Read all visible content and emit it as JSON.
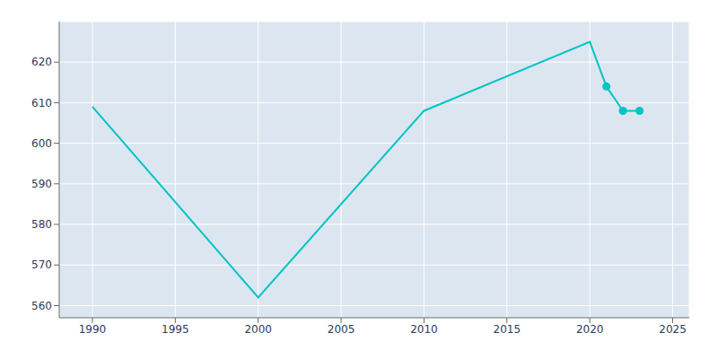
{
  "chart_data": {
    "type": "line",
    "x": [
      1990,
      2000,
      2010,
      2020,
      2021,
      2022,
      2023
    ],
    "series": [
      {
        "type": "line",
        "color": "#00c4c4",
        "values": [
          609,
          562,
          608,
          625,
          614,
          608,
          608
        ]
      },
      {
        "type": "scatter",
        "marker": "o",
        "color": "#00c4c4",
        "values": [
          null,
          null,
          null,
          null,
          614,
          608,
          608
        ]
      }
    ],
    "xlim": [
      1988,
      2026
    ],
    "ylim": [
      557,
      630
    ],
    "xticks": [
      1990,
      1995,
      2000,
      2005,
      2010,
      2015,
      2020,
      2025
    ],
    "yticks": [
      560,
      570,
      580,
      590,
      600,
      610,
      620
    ],
    "grid": true
  }
}
